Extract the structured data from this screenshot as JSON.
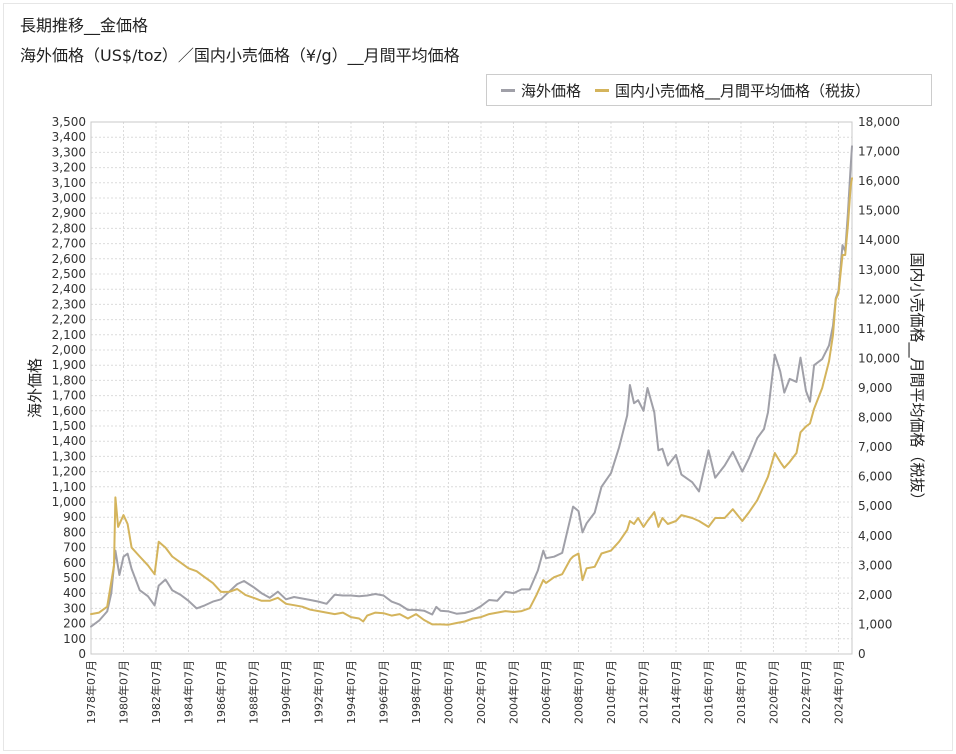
{
  "header": {
    "title": "長期推移__金価格",
    "subtitle": "海外価格（US$/toz）／国内小売価格（¥/g）__月間平均価格"
  },
  "legend": {
    "items": [
      {
        "label": "海外価格",
        "color": "#a0a0a8"
      },
      {
        "label": "国内小売価格__月間平均価格（税抜）",
        "color": "#d4b45c"
      }
    ]
  },
  "chart_data": {
    "type": "line",
    "x_range": [
      "1978-07",
      "2025-05"
    ],
    "x_tick_labels": [
      "1978年07月",
      "1980年07月",
      "1982年07月",
      "1984年07月",
      "1986年07月",
      "1988年07月",
      "1990年07月",
      "1992年07月",
      "1994年07月",
      "1996年07月",
      "1998年07月",
      "2000年07月",
      "2002年07月",
      "2004年07月",
      "2006年07月",
      "2008年07月",
      "2010年07月",
      "2012年07月",
      "2014年07月",
      "2016年07月",
      "2018年07月",
      "2020年07月",
      "2022年07月",
      "2024年07月"
    ],
    "y_left": {
      "label": "海外価格",
      "min": 0,
      "max": 3500,
      "step": 100
    },
    "y_right": {
      "label": "国内小売価格__月間平均価格（税抜）",
      "min": 0,
      "max": 18000,
      "step": 1000
    },
    "grid": true,
    "legend_position": "top-right",
    "series": [
      {
        "name": "海外価格",
        "axis": "left",
        "color": "#a0a0a8",
        "points": [
          [
            "1978-07",
            180
          ],
          [
            "1979-01",
            220
          ],
          [
            "1979-07",
            280
          ],
          [
            "1979-10",
            400
          ],
          [
            "1980-01",
            680
          ],
          [
            "1980-04",
            520
          ],
          [
            "1980-07",
            640
          ],
          [
            "1980-10",
            660
          ],
          [
            "1981-01",
            560
          ],
          [
            "1981-07",
            420
          ],
          [
            "1982-01",
            380
          ],
          [
            "1982-06",
            320
          ],
          [
            "1982-09",
            450
          ],
          [
            "1983-02",
            490
          ],
          [
            "1983-07",
            420
          ],
          [
            "1984-01",
            390
          ],
          [
            "1984-07",
            350
          ],
          [
            "1985-01",
            300
          ],
          [
            "1985-07",
            320
          ],
          [
            "1986-01",
            345
          ],
          [
            "1986-07",
            360
          ],
          [
            "1987-01",
            410
          ],
          [
            "1987-07",
            460
          ],
          [
            "1987-12",
            480
          ],
          [
            "1988-07",
            440
          ],
          [
            "1989-01",
            400
          ],
          [
            "1989-07",
            370
          ],
          [
            "1990-01",
            410
          ],
          [
            "1990-07",
            360
          ],
          [
            "1991-01",
            375
          ],
          [
            "1991-07",
            365
          ],
          [
            "1992-01",
            355
          ],
          [
            "1992-07",
            345
          ],
          [
            "1993-01",
            330
          ],
          [
            "1993-07",
            390
          ],
          [
            "1994-01",
            385
          ],
          [
            "1994-07",
            385
          ],
          [
            "1995-01",
            380
          ],
          [
            "1995-07",
            385
          ],
          [
            "1996-01",
            395
          ],
          [
            "1996-07",
            385
          ],
          [
            "1997-01",
            345
          ],
          [
            "1997-07",
            325
          ],
          [
            "1998-01",
            290
          ],
          [
            "1998-07",
            290
          ],
          [
            "1999-01",
            285
          ],
          [
            "1999-07",
            260
          ],
          [
            "1999-10",
            310
          ],
          [
            "2000-01",
            285
          ],
          [
            "2000-07",
            280
          ],
          [
            "2001-01",
            265
          ],
          [
            "2001-07",
            270
          ],
          [
            "2002-01",
            285
          ],
          [
            "2002-07",
            315
          ],
          [
            "2003-01",
            355
          ],
          [
            "2003-07",
            350
          ],
          [
            "2004-01",
            410
          ],
          [
            "2004-07",
            400
          ],
          [
            "2005-01",
            425
          ],
          [
            "2005-07",
            425
          ],
          [
            "2006-01",
            550
          ],
          [
            "2006-05",
            680
          ],
          [
            "2006-07",
            630
          ],
          [
            "2007-01",
            640
          ],
          [
            "2007-07",
            665
          ],
          [
            "2008-01",
            890
          ],
          [
            "2008-03",
            970
          ],
          [
            "2008-07",
            940
          ],
          [
            "2008-10",
            800
          ],
          [
            "2009-01",
            860
          ],
          [
            "2009-07",
            930
          ],
          [
            "2009-12",
            1100
          ],
          [
            "2010-07",
            1190
          ],
          [
            "2011-01",
            1360
          ],
          [
            "2011-07",
            1570
          ],
          [
            "2011-09",
            1770
          ],
          [
            "2011-12",
            1650
          ],
          [
            "2012-03",
            1670
          ],
          [
            "2012-07",
            1600
          ],
          [
            "2012-10",
            1750
          ],
          [
            "2013-03",
            1590
          ],
          [
            "2013-06",
            1340
          ],
          [
            "2013-09",
            1350
          ],
          [
            "2014-01",
            1240
          ],
          [
            "2014-07",
            1310
          ],
          [
            "2014-11",
            1180
          ],
          [
            "2015-07",
            1130
          ],
          [
            "2015-12",
            1070
          ],
          [
            "2016-07",
            1340
          ],
          [
            "2016-12",
            1160
          ],
          [
            "2017-07",
            1240
          ],
          [
            "2018-01",
            1330
          ],
          [
            "2018-08",
            1200
          ],
          [
            "2019-01",
            1290
          ],
          [
            "2019-07",
            1420
          ],
          [
            "2019-12",
            1480
          ],
          [
            "2020-03",
            1590
          ],
          [
            "2020-08",
            1970
          ],
          [
            "2020-12",
            1860
          ],
          [
            "2021-03",
            1720
          ],
          [
            "2021-07",
            1810
          ],
          [
            "2021-12",
            1790
          ],
          [
            "2022-03",
            1950
          ],
          [
            "2022-07",
            1730
          ],
          [
            "2022-10",
            1660
          ],
          [
            "2023-01",
            1900
          ],
          [
            "2023-07",
            1940
          ],
          [
            "2023-12",
            2030
          ],
          [
            "2024-03",
            2160
          ],
          [
            "2024-05",
            2340
          ],
          [
            "2024-07",
            2390
          ],
          [
            "2024-10",
            2690
          ],
          [
            "2024-12",
            2650
          ],
          [
            "2025-02",
            2900
          ],
          [
            "2025-04",
            3200
          ],
          [
            "2025-05",
            3340
          ]
        ]
      },
      {
        "name": "国内小売価格__月間平均価格（税抜）",
        "axis": "right",
        "color": "#d4b45c",
        "points": [
          [
            "1978-07",
            1350
          ],
          [
            "1979-01",
            1400
          ],
          [
            "1979-07",
            1600
          ],
          [
            "1979-12",
            3000
          ],
          [
            "1980-01",
            5300
          ],
          [
            "1980-03",
            4300
          ],
          [
            "1980-07",
            4700
          ],
          [
            "1980-10",
            4400
          ],
          [
            "1981-01",
            3600
          ],
          [
            "1981-07",
            3300
          ],
          [
            "1982-01",
            3000
          ],
          [
            "1982-06",
            2700
          ],
          [
            "1982-09",
            3800
          ],
          [
            "1983-02",
            3600
          ],
          [
            "1983-07",
            3300
          ],
          [
            "1984-01",
            3100
          ],
          [
            "1984-07",
            2900
          ],
          [
            "1985-01",
            2800
          ],
          [
            "1985-07",
            2600
          ],
          [
            "1986-01",
            2400
          ],
          [
            "1986-07",
            2100
          ],
          [
            "1987-01",
            2100
          ],
          [
            "1987-07",
            2200
          ],
          [
            "1988-01",
            2000
          ],
          [
            "1988-07",
            1900
          ],
          [
            "1989-01",
            1800
          ],
          [
            "1989-07",
            1800
          ],
          [
            "1990-01",
            1900
          ],
          [
            "1990-07",
            1700
          ],
          [
            "1991-01",
            1650
          ],
          [
            "1991-07",
            1600
          ],
          [
            "1992-01",
            1500
          ],
          [
            "1992-07",
            1450
          ],
          [
            "1993-01",
            1400
          ],
          [
            "1993-07",
            1350
          ],
          [
            "1994-01",
            1400
          ],
          [
            "1994-07",
            1250
          ],
          [
            "1995-01",
            1200
          ],
          [
            "1995-04",
            1100
          ],
          [
            "1995-07",
            1300
          ],
          [
            "1996-01",
            1400
          ],
          [
            "1996-07",
            1380
          ],
          [
            "1997-01",
            1300
          ],
          [
            "1997-07",
            1350
          ],
          [
            "1998-01",
            1200
          ],
          [
            "1998-07",
            1350
          ],
          [
            "1999-01",
            1150
          ],
          [
            "1999-07",
            1000
          ],
          [
            "2000-01",
            1000
          ],
          [
            "2000-07",
            990
          ],
          [
            "2001-01",
            1050
          ],
          [
            "2001-07",
            1100
          ],
          [
            "2002-01",
            1200
          ],
          [
            "2002-07",
            1250
          ],
          [
            "2003-01",
            1350
          ],
          [
            "2003-07",
            1400
          ],
          [
            "2004-01",
            1450
          ],
          [
            "2004-07",
            1420
          ],
          [
            "2005-01",
            1450
          ],
          [
            "2005-07",
            1550
          ],
          [
            "2005-12",
            2000
          ],
          [
            "2006-05",
            2500
          ],
          [
            "2006-07",
            2400
          ],
          [
            "2007-01",
            2600
          ],
          [
            "2007-07",
            2700
          ],
          [
            "2008-01",
            3200
          ],
          [
            "2008-03",
            3300
          ],
          [
            "2008-07",
            3400
          ],
          [
            "2008-10",
            2500
          ],
          [
            "2009-01",
            2900
          ],
          [
            "2009-07",
            2950
          ],
          [
            "2009-12",
            3400
          ],
          [
            "2010-07",
            3500
          ],
          [
            "2011-01",
            3800
          ],
          [
            "2011-07",
            4200
          ],
          [
            "2011-09",
            4500
          ],
          [
            "2011-12",
            4400
          ],
          [
            "2012-03",
            4600
          ],
          [
            "2012-07",
            4300
          ],
          [
            "2012-10",
            4500
          ],
          [
            "2013-03",
            4800
          ],
          [
            "2013-06",
            4300
          ],
          [
            "2013-09",
            4600
          ],
          [
            "2014-01",
            4400
          ],
          [
            "2014-07",
            4500
          ],
          [
            "2014-11",
            4700
          ],
          [
            "2015-07",
            4600
          ],
          [
            "2015-12",
            4500
          ],
          [
            "2016-07",
            4300
          ],
          [
            "2016-12",
            4600
          ],
          [
            "2017-07",
            4600
          ],
          [
            "2018-01",
            4900
          ],
          [
            "2018-08",
            4500
          ],
          [
            "2019-01",
            4800
          ],
          [
            "2019-07",
            5200
          ],
          [
            "2019-12",
            5700
          ],
          [
            "2020-03",
            6000
          ],
          [
            "2020-08",
            6800
          ],
          [
            "2020-12",
            6500
          ],
          [
            "2021-03",
            6300
          ],
          [
            "2021-07",
            6500
          ],
          [
            "2021-12",
            6800
          ],
          [
            "2022-03",
            7500
          ],
          [
            "2022-07",
            7700
          ],
          [
            "2022-10",
            7800
          ],
          [
            "2023-01",
            8300
          ],
          [
            "2023-07",
            9000
          ],
          [
            "2023-12",
            9900
          ],
          [
            "2024-03",
            10800
          ],
          [
            "2024-05",
            12000
          ],
          [
            "2024-07",
            12200
          ],
          [
            "2024-10",
            13500
          ],
          [
            "2024-12",
            13500
          ],
          [
            "2025-02",
            14500
          ],
          [
            "2025-04",
            15800
          ],
          [
            "2025-05",
            16100
          ]
        ]
      }
    ]
  }
}
